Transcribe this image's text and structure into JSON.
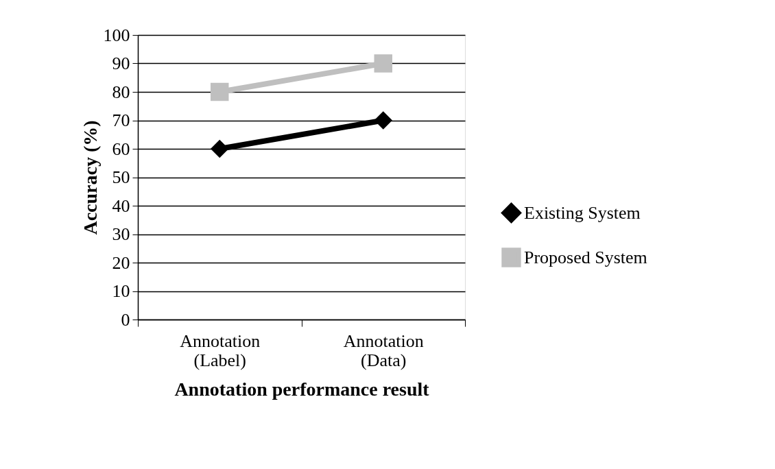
{
  "chart_data": {
    "type": "line",
    "xlabel": "Annotation performance result",
    "ylabel": "Accuracy (%)",
    "categories": [
      "Annotation (Label)",
      "Annotation (Data)"
    ],
    "series": [
      {
        "name": "Existing System",
        "color": "#000000",
        "marker": "diamond",
        "values": [
          60,
          70
        ]
      },
      {
        "name": "Proposed System",
        "color": "#bfbfbf",
        "marker": "square",
        "values": [
          80,
          90
        ]
      }
    ],
    "ylim": [
      0,
      100
    ],
    "yticks": [
      0,
      10,
      20,
      30,
      40,
      50,
      60,
      70,
      80,
      90,
      100
    ],
    "grid": "y",
    "legend": "right",
    "line_style": "solid"
  }
}
